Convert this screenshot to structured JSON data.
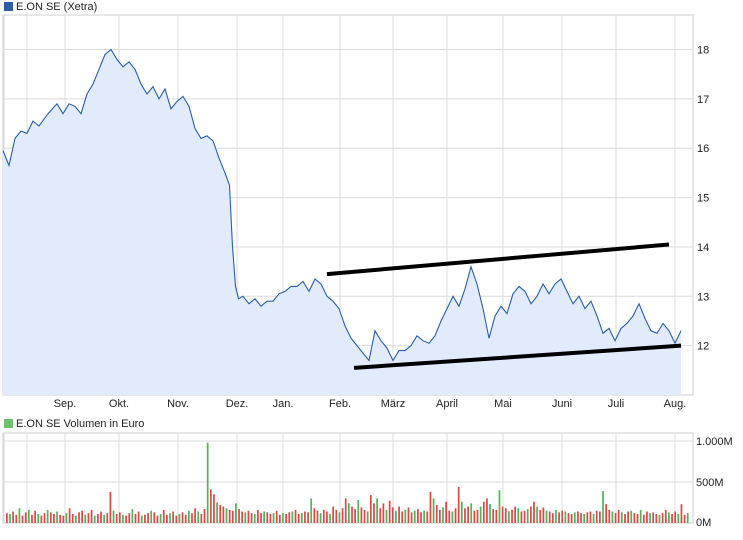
{
  "colors": {
    "price_line": "#2b5da6",
    "price_fill": "#e2ebfb",
    "volume_up": "#52b35a",
    "volume_down": "#d84a4a",
    "grid": "#dcdcdc",
    "trendline": "#000000",
    "price_swatch": "#2b5da6",
    "volume_swatch": "#6cc56c"
  },
  "chart_data": [
    {
      "type": "line",
      "title": "E.ON SE (Xetra)",
      "legend_position": "top-left",
      "grid": true,
      "ylim": [
        11,
        18.7
      ],
      "y_ticks": [
        18,
        17,
        16,
        15,
        14,
        13,
        12
      ],
      "x_ticks": [
        "Sep.",
        "Okt.",
        "Nov.",
        "Dez.",
        "Jan.",
        "Feb.",
        "März",
        "April",
        "Mai",
        "Juni",
        "Juli",
        "Aug."
      ],
      "series": [
        {
          "name": "E.ON SE (Xetra)",
          "points": [
            [
              0,
              15.95
            ],
            [
              2,
              15.65
            ],
            [
              4,
              16.2
            ],
            [
              6,
              16.35
            ],
            [
              8,
              16.3
            ],
            [
              10,
              16.55
            ],
            [
              12,
              16.45
            ],
            [
              15,
              16.7
            ],
            [
              18,
              16.9
            ],
            [
              20,
              16.7
            ],
            [
              22,
              16.9
            ],
            [
              24,
              16.85
            ],
            [
              26,
              16.7
            ],
            [
              28,
              17.1
            ],
            [
              30,
              17.3
            ],
            [
              32,
              17.6
            ],
            [
              34,
              17.9
            ],
            [
              36,
              18.0
            ],
            [
              38,
              17.8
            ],
            [
              40,
              17.65
            ],
            [
              42,
              17.75
            ],
            [
              44,
              17.6
            ],
            [
              46,
              17.3
            ],
            [
              48,
              17.1
            ],
            [
              50,
              17.25
            ],
            [
              52,
              17.0
            ],
            [
              54,
              17.2
            ],
            [
              56,
              16.8
            ],
            [
              58,
              16.95
            ],
            [
              60,
              17.05
            ],
            [
              62,
              16.85
            ],
            [
              64,
              16.4
            ],
            [
              66,
              16.2
            ],
            [
              68,
              16.25
            ],
            [
              70,
              16.15
            ],
            [
              72,
              15.8
            ],
            [
              74,
              15.5
            ],
            [
              75.5,
              15.25
            ],
            [
              76.5,
              14.0
            ],
            [
              77.5,
              13.2
            ],
            [
              78.5,
              12.95
            ],
            [
              80,
              13.0
            ],
            [
              82,
              12.85
            ],
            [
              84,
              12.95
            ],
            [
              86,
              12.8
            ],
            [
              88,
              12.9
            ],
            [
              90,
              12.9
            ],
            [
              92,
              13.05
            ],
            [
              94,
              13.1
            ],
            [
              96,
              13.2
            ],
            [
              98,
              13.2
            ],
            [
              100,
              13.3
            ],
            [
              102,
              13.1
            ],
            [
              104,
              13.35
            ],
            [
              106,
              13.25
            ],
            [
              108,
              13.0
            ],
            [
              110,
              12.9
            ],
            [
              112,
              12.75
            ],
            [
              114,
              12.4
            ],
            [
              116,
              12.15
            ],
            [
              118,
              12.0
            ],
            [
              120,
              11.85
            ],
            [
              122,
              11.7
            ],
            [
              124,
              12.3
            ],
            [
              126,
              12.1
            ],
            [
              128,
              11.95
            ],
            [
              130,
              11.7
            ],
            [
              132,
              11.9
            ],
            [
              134,
              11.9
            ],
            [
              136,
              12.0
            ],
            [
              138,
              12.2
            ],
            [
              140,
              12.1
            ],
            [
              142,
              12.05
            ],
            [
              144,
              12.2
            ],
            [
              146,
              12.5
            ],
            [
              148,
              12.75
            ],
            [
              150,
              13.0
            ],
            [
              152,
              12.8
            ],
            [
              154,
              13.15
            ],
            [
              156,
              13.6
            ],
            [
              158,
              13.25
            ],
            [
              160,
              12.75
            ],
            [
              162,
              12.15
            ],
            [
              164,
              12.6
            ],
            [
              166,
              12.8
            ],
            [
              168,
              12.65
            ],
            [
              170,
              13.05
            ],
            [
              172,
              13.2
            ],
            [
              174,
              13.1
            ],
            [
              176,
              12.85
            ],
            [
              178,
              13.0
            ],
            [
              180,
              13.25
            ],
            [
              182,
              13.05
            ],
            [
              184,
              13.25
            ],
            [
              186,
              13.35
            ],
            [
              188,
              13.1
            ],
            [
              190,
              12.85
            ],
            [
              192,
              13.0
            ],
            [
              194,
              12.75
            ],
            [
              196,
              12.9
            ],
            [
              198,
              12.6
            ],
            [
              200,
              12.25
            ],
            [
              202,
              12.35
            ],
            [
              204,
              12.1
            ],
            [
              206,
              12.35
            ],
            [
              208,
              12.45
            ],
            [
              210,
              12.6
            ],
            [
              212,
              12.85
            ],
            [
              214,
              12.55
            ],
            [
              216,
              12.3
            ],
            [
              218,
              12.25
            ],
            [
              220,
              12.45
            ],
            [
              222,
              12.3
            ],
            [
              224,
              12.05
            ],
            [
              226,
              12.3
            ]
          ]
        }
      ],
      "annotations": [
        {
          "type": "trendline",
          "from": [
            108,
            13.45
          ],
          "to": [
            222,
            14.05
          ]
        },
        {
          "type": "trendline",
          "from": [
            117,
            11.55
          ],
          "to": [
            226,
            12.0
          ]
        }
      ]
    },
    {
      "type": "bar",
      "title": "E.ON SE Volumen in Euro",
      "legend_position": "top-left",
      "grid": true,
      "ylim": [
        0,
        1000
      ],
      "y_ticks": [
        "1.000M",
        "500M",
        "0M"
      ],
      "x_ticks": [
        "Sep.",
        "Okt.",
        "Nov.",
        "Dez.",
        "Jan.",
        "Feb.",
        "März",
        "April",
        "Mai",
        "Juni",
        "Juli",
        "Aug."
      ],
      "series": [
        {
          "name": "E.ON SE Volumen in Euro",
          "values": [
            120,
            110,
            140,
            100,
            180,
            90,
            130,
            160,
            100,
            150,
            110,
            90,
            120,
            160,
            130,
            110,
            140,
            100,
            90,
            120,
            180,
            110,
            90,
            130,
            150,
            100,
            120,
            160,
            90,
            110,
            140,
            100,
            120,
            380,
            150,
            110,
            130,
            100,
            90,
            120,
            170,
            110,
            140,
            90,
            100,
            120,
            150,
            130,
            90,
            110,
            160,
            100,
            120,
            140,
            90,
            110,
            130,
            100,
            150,
            120,
            180,
            140,
            110,
            170,
            980,
            410,
            350,
            250,
            220,
            200,
            180,
            160,
            150,
            240,
            170,
            140,
            130,
            150,
            120,
            110,
            160,
            120,
            140,
            130,
            110,
            120,
            150,
            100,
            120,
            110,
            130,
            140,
            160,
            110,
            120,
            140,
            130,
            300,
            180,
            150,
            120,
            160,
            140,
            110,
            200,
            160,
            130,
            180,
            300,
            240,
            200,
            170,
            280,
            190,
            160,
            140,
            340,
            240,
            300,
            180,
            240,
            160,
            270,
            190,
            150,
            200,
            140,
            160,
            190,
            130,
            150,
            170,
            130,
            150,
            140,
            380,
            300,
            220,
            160,
            190,
            260,
            150,
            140,
            180,
            440,
            260,
            180,
            200,
            240,
            150,
            160,
            200,
            260,
            300,
            230,
            170,
            160,
            400,
            200,
            180,
            140,
            160,
            200,
            180,
            140,
            150,
            170,
            200,
            260,
            200,
            160,
            190,
            150,
            140,
            120,
            160,
            130,
            150,
            140,
            120,
            110,
            130,
            140,
            120,
            110,
            130,
            140,
            110,
            150,
            140,
            390,
            230,
            160,
            140,
            120,
            160,
            130,
            110,
            140,
            150,
            120,
            110,
            160,
            100,
            140,
            120,
            130,
            110,
            100,
            120,
            160,
            130,
            110,
            140,
            110,
            230,
            100,
            120
          ]
        }
      ]
    }
  ]
}
